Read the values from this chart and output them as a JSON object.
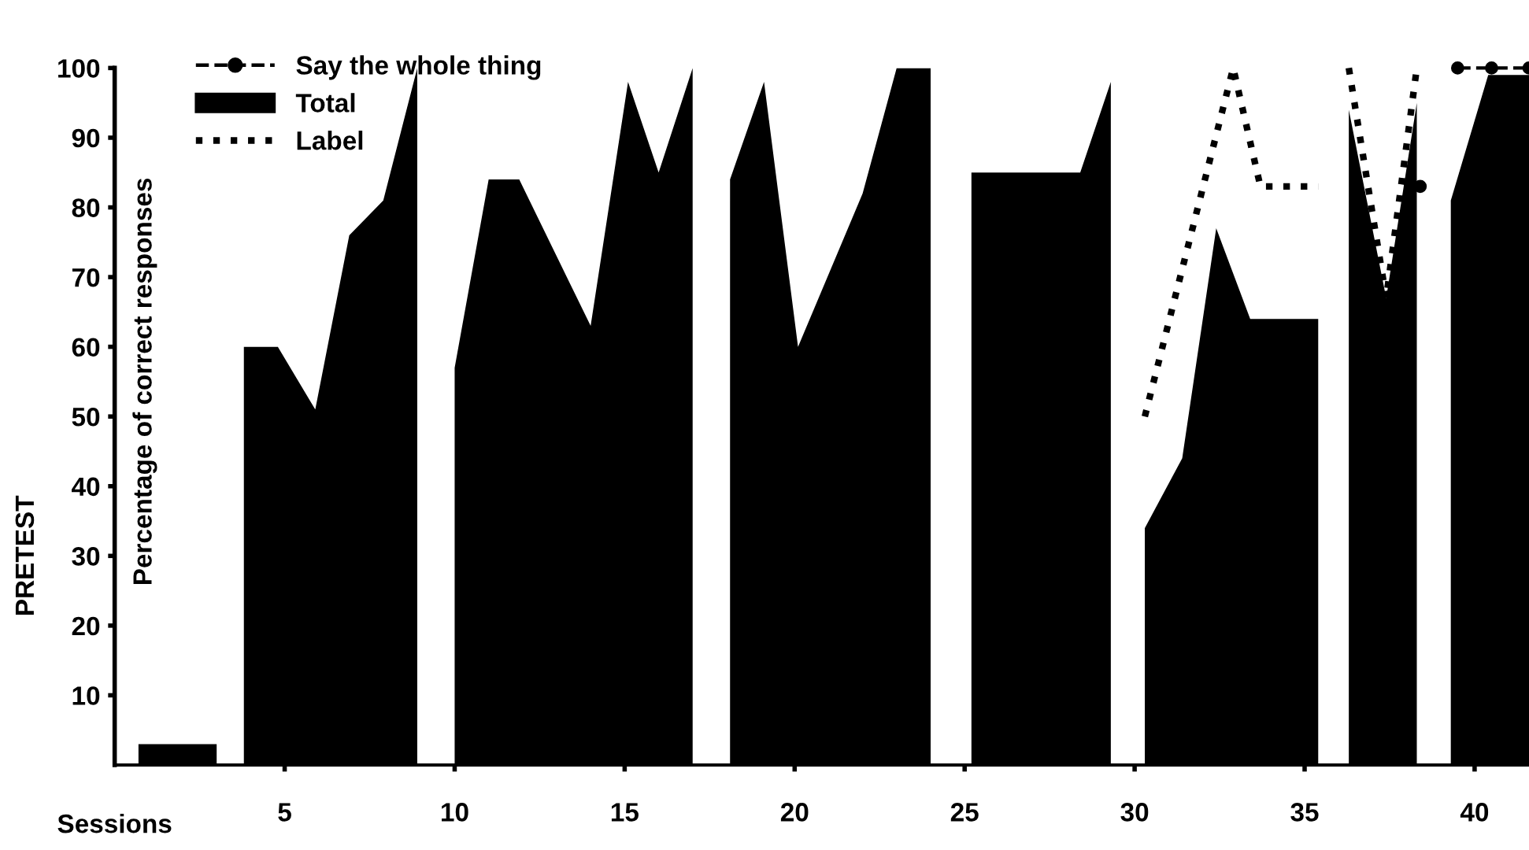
{
  "chart_data": {
    "type": "area",
    "xlabel": "Sessions",
    "ylabel": "Percentage of correct responses",
    "annotations": [
      "PRETEST"
    ],
    "xlim": [
      0,
      41.6
    ],
    "ylim": [
      0,
      100
    ],
    "xticks": [
      5,
      10,
      15,
      20,
      25,
      30,
      35,
      40
    ],
    "yticks": [
      10,
      20,
      30,
      40,
      50,
      60,
      70,
      80,
      90,
      100
    ],
    "grid": false,
    "legend": "top left",
    "series": [
      {
        "name": "Say the whole thing",
        "type": "line",
        "color": "#000000",
        "line_style": "dashed",
        "marker": "circle",
        "x": [
          38.4,
          38.9,
          39.5,
          40.5,
          41.6
        ],
        "values": [
          83,
          null,
          100,
          100,
          100
        ]
      },
      {
        "name": "Total",
        "color": "#000000",
        "x": [
          0.7,
          3.0,
          3.4,
          3.8,
          4.8,
          5.9,
          6.9,
          7.9,
          8.9,
          9.4,
          10.0,
          11.0,
          11.9,
          13.4,
          14.0,
          15.1,
          16.0,
          17.0,
          17.5,
          18.1,
          19.1,
          20.1,
          22.0,
          23.0,
          24.0,
          24.6,
          25.2,
          28.4,
          29.3,
          29.8,
          30.3,
          31.4,
          32.4,
          33.4,
          35.4,
          35.8,
          36.3,
          37.4,
          38.3,
          38.8,
          39.3,
          40.4,
          41.6
        ],
        "values": [
          3,
          3,
          null,
          60,
          60,
          51,
          76,
          81,
          100,
          null,
          57,
          84,
          84,
          69,
          63,
          98,
          85,
          100,
          null,
          84,
          98,
          60,
          82,
          100,
          100,
          null,
          85,
          85,
          98,
          null,
          34,
          44,
          77,
          64,
          64,
          null,
          94,
          67,
          95,
          null,
          81,
          99,
          99
        ]
      },
      {
        "name": "Label",
        "type": "line",
        "color": "#000000",
        "line_style": "dotted",
        "x": [
          30.3,
          32.9,
          33.7,
          35.4,
          35.8,
          36.3,
          37.4,
          38.3
        ],
        "values": [
          50,
          100,
          83,
          83,
          null,
          100,
          67,
          100
        ]
      }
    ]
  }
}
